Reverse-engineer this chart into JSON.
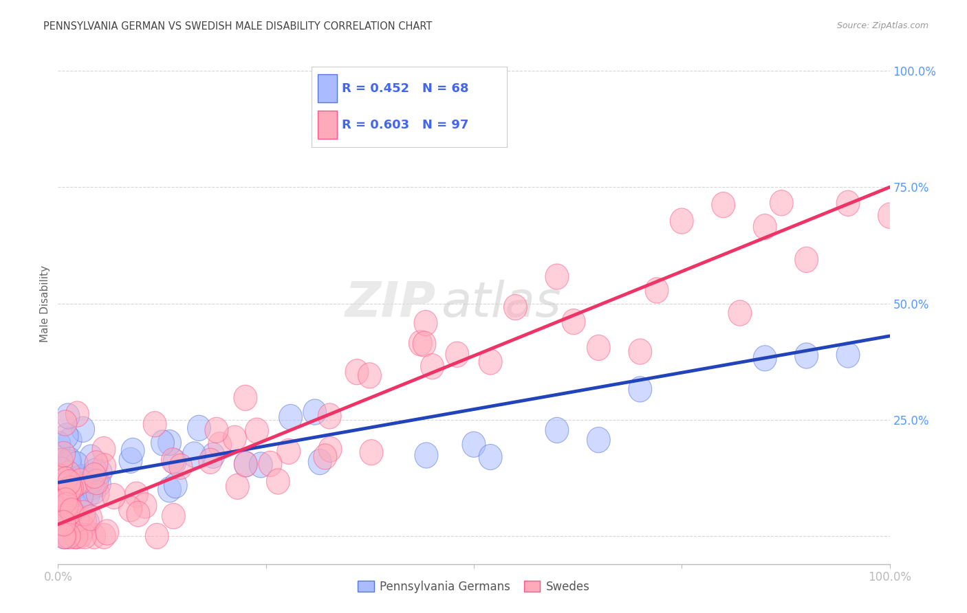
{
  "title": "PENNSYLVANIA GERMAN VS SWEDISH MALE DISABILITY CORRELATION CHART",
  "source": "Source: ZipAtlas.com",
  "ylabel": "Male Disability",
  "bg_color": "#ffffff",
  "grid_color": "#cccccc",
  "watermark_zip": "ZIP",
  "watermark_atlas": "atlas",
  "blue_fill": "#aabbff",
  "pink_fill": "#ffaabb",
  "blue_edge": "#5577dd",
  "pink_edge": "#ff5588",
  "blue_line_color": "#2244bb",
  "pink_line_color": "#ee3366",
  "legend_label1": "Pennsylvania Germans",
  "legend_label2": "Swedes",
  "legend_blue_r": "R = 0.452",
  "legend_blue_n": "N = 68",
  "legend_pink_r": "R = 0.603",
  "legend_pink_n": "N = 97",
  "blue_intercept": 0.115,
  "blue_slope": 0.315,
  "pink_intercept": 0.025,
  "pink_slope": 0.725,
  "xmin": 0.0,
  "xmax": 1.0,
  "ymin": -0.06,
  "ymax": 1.06,
  "yticks": [
    0.0,
    0.25,
    0.5,
    0.75,
    1.0
  ],
  "ytick_labels": [
    "",
    "25.0%",
    "50.0%",
    "75.0%",
    "100.0%"
  ],
  "xtick_labels": [
    "0.0%",
    "",
    "",
    "",
    "100.0%"
  ],
  "tick_color": "#5599ff",
  "title_color": "#444444",
  "source_color": "#999999",
  "ylabel_color": "#666666"
}
